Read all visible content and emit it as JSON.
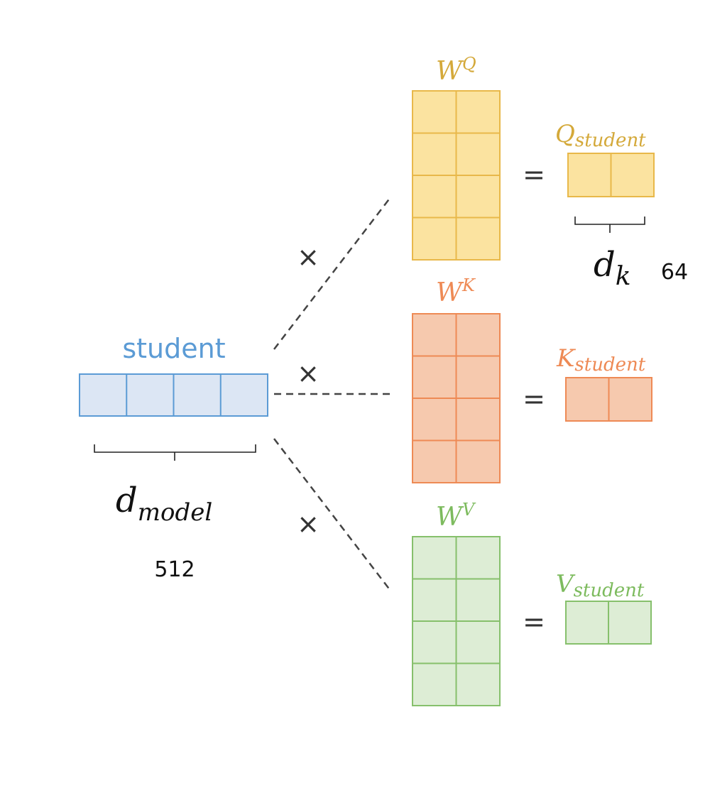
{
  "input_vector": {
    "label": "student",
    "cells": 4,
    "color": "#5B9BD5",
    "fill": "#DCE6F4"
  },
  "d_model": {
    "symbol": "d",
    "subscript": "model",
    "value": "512"
  },
  "d_k": {
    "symbol": "d",
    "subscript": "k",
    "value": "64"
  },
  "operators": {
    "multiply": "×",
    "equals": "="
  },
  "weights": [
    {
      "id": "q",
      "symbol": "W",
      "superscript": "Q",
      "rows": 4,
      "cols": 2,
      "result_letter": "Q",
      "result_subscript": "student",
      "result_cells": 2,
      "stroke": "#E8B84A",
      "fill": "#FBE3A0",
      "text_color": "#D4A93A"
    },
    {
      "id": "k",
      "symbol": "W",
      "superscript": "K",
      "rows": 4,
      "cols": 2,
      "result_letter": "K",
      "result_subscript": "student",
      "result_cells": 2,
      "stroke": "#EE8A55",
      "fill": "#F6C9AE",
      "text_color": "#EE8A55"
    },
    {
      "id": "v",
      "symbol": "W",
      "superscript": "V",
      "rows": 4,
      "cols": 2,
      "result_letter": "V",
      "result_subscript": "student",
      "result_cells": 2,
      "stroke": "#86C06C",
      "fill": "#DDEDD5",
      "text_color": "#7DBB5E"
    }
  ]
}
